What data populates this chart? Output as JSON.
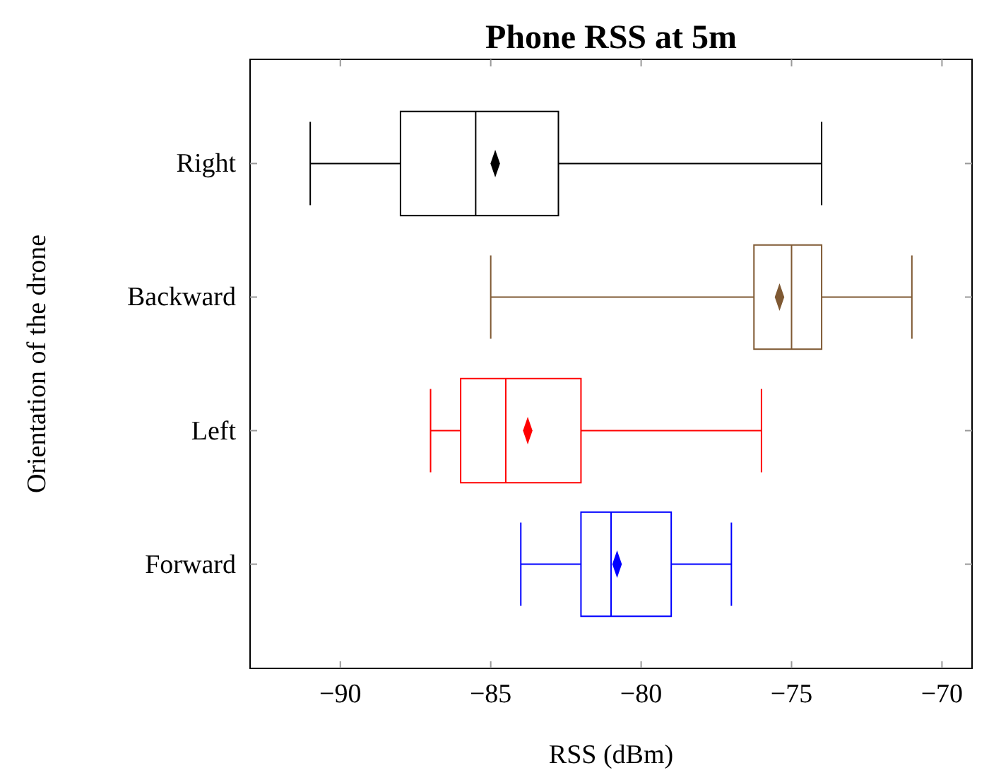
{
  "chart_data": {
    "type": "box",
    "orientation": "horizontal",
    "title": "Phone RSS at 5m",
    "xlabel": "RSS (dBm)",
    "ylabel": "Orientation of the drone",
    "categories": [
      "Right",
      "Backward",
      "Left",
      "Forward"
    ],
    "colors": [
      "#000000",
      "#7f5933",
      "#ff0000",
      "#0000ff"
    ],
    "boxes": [
      {
        "low": -91,
        "q1": -88,
        "median": -85.5,
        "q3": -82.75,
        "high": -74,
        "mean": -84.85
      },
      {
        "low": -85,
        "q1": -76.25,
        "median": -75,
        "q3": -74,
        "high": -71,
        "mean": -75.4
      },
      {
        "low": -87,
        "q1": -86,
        "median": -84.5,
        "q3": -82,
        "high": -76,
        "mean": -83.77
      },
      {
        "low": -84,
        "q1": -82,
        "median": -81,
        "q3": -79,
        "high": -77,
        "mean": -80.8
      }
    ],
    "marker": "diamond",
    "xlim": [
      -93,
      -69
    ],
    "xticks": [
      -90,
      -85,
      -80,
      -75,
      -70
    ],
    "grid": false
  }
}
